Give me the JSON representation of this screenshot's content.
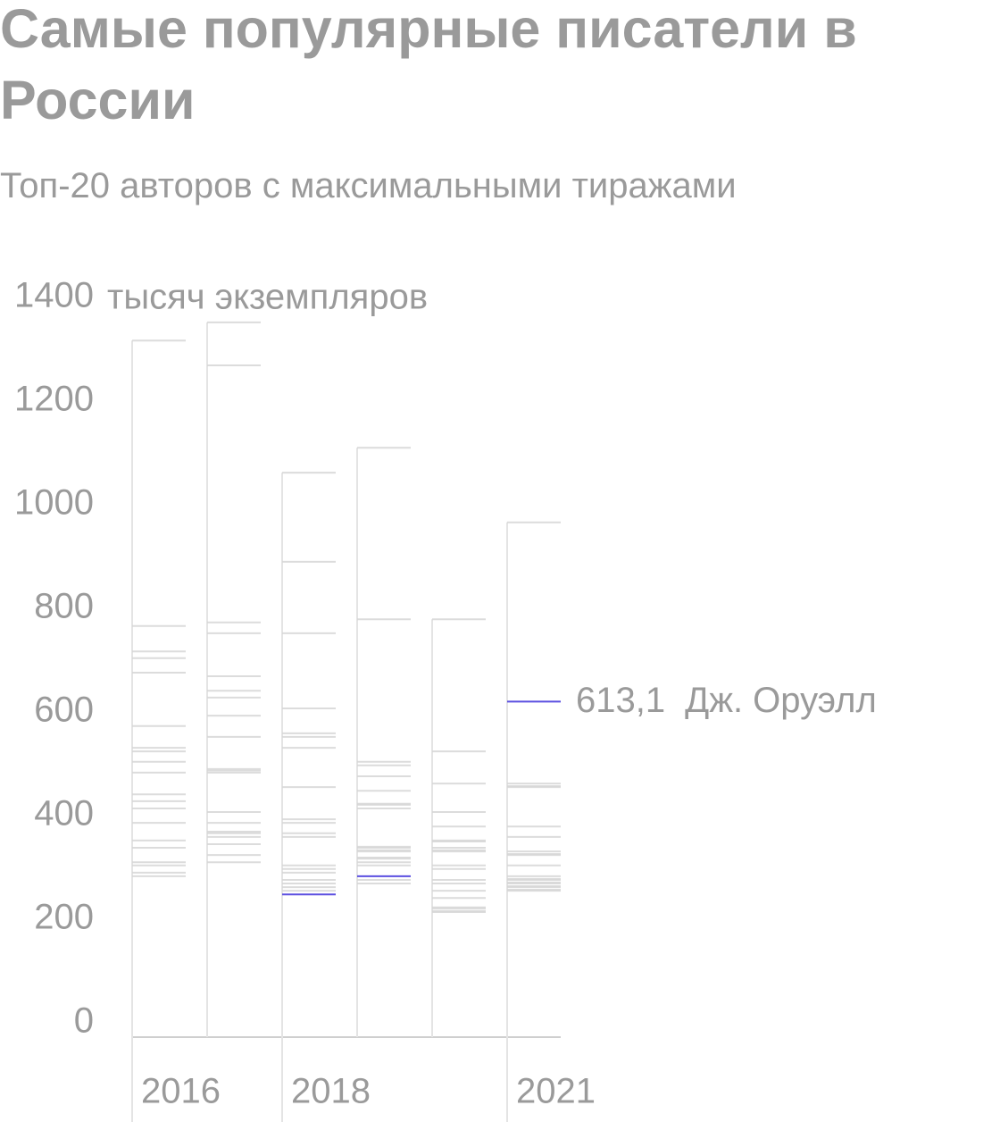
{
  "chart_data": {
    "type": "strip",
    "title": "Самые популярные писатели в России",
    "subtitle": "Топ-20 авторов с максимальными тиражами",
    "y_label": "тысяч экземпляров",
    "categories": [
      "2016",
      null,
      "2018",
      null,
      null,
      "2021"
    ],
    "ylim": [
      0,
      1400
    ],
    "yticks": [
      0,
      200,
      400,
      600,
      800,
      1000,
      1200,
      1400
    ],
    "color": "#d6d6d6",
    "columns": [
      {
        "values": [
          1310,
          759,
          710,
          697,
          669,
          566,
          524,
          517,
          497,
          476,
          434,
          421,
          407,
          379,
          345,
          331,
          303,
          297,
          283,
          276
        ]
      },
      {
        "values": [
          1345,
          1262,
          766,
          745,
          662,
          634,
          621,
          586,
          545,
          483,
          480,
          476,
          400,
          379,
          362,
          359,
          352,
          338,
          317,
          303
        ]
      },
      {
        "values": [
          1055,
          883,
          745,
          600,
          552,
          545,
          524,
          448,
          386,
          379,
          359,
          352,
          297,
          290,
          283,
          269,
          262,
          255,
          248
        ]
      },
      {
        "values": [
          1103,
          772,
          497,
          490,
          469,
          441,
          416,
          414,
          407,
          333,
          331,
          326,
          324,
          312,
          310,
          303,
          297,
          269,
          262
        ]
      },
      {
        "values": [
          772,
          517,
          455,
          400,
          372,
          345,
          343,
          331,
          326,
          324,
          297,
          290,
          269,
          262,
          248,
          234,
          216,
          214,
          209,
          207
        ]
      },
      {
        "values": [
          959,
          455,
          450,
          448,
          372,
          352,
          324,
          319,
          317,
          297,
          276,
          271,
          269,
          264,
          262,
          257,
          255,
          250,
          248
        ]
      }
    ],
    "highlight": {
      "name": "Дж. Оруэлл",
      "color": "#5b4fe0",
      "values": [
        null,
        null,
        241,
        276,
        null,
        613.1
      ],
      "value_labels": [
        null,
        null,
        null,
        null,
        null,
        "613,1"
      ]
    }
  }
}
